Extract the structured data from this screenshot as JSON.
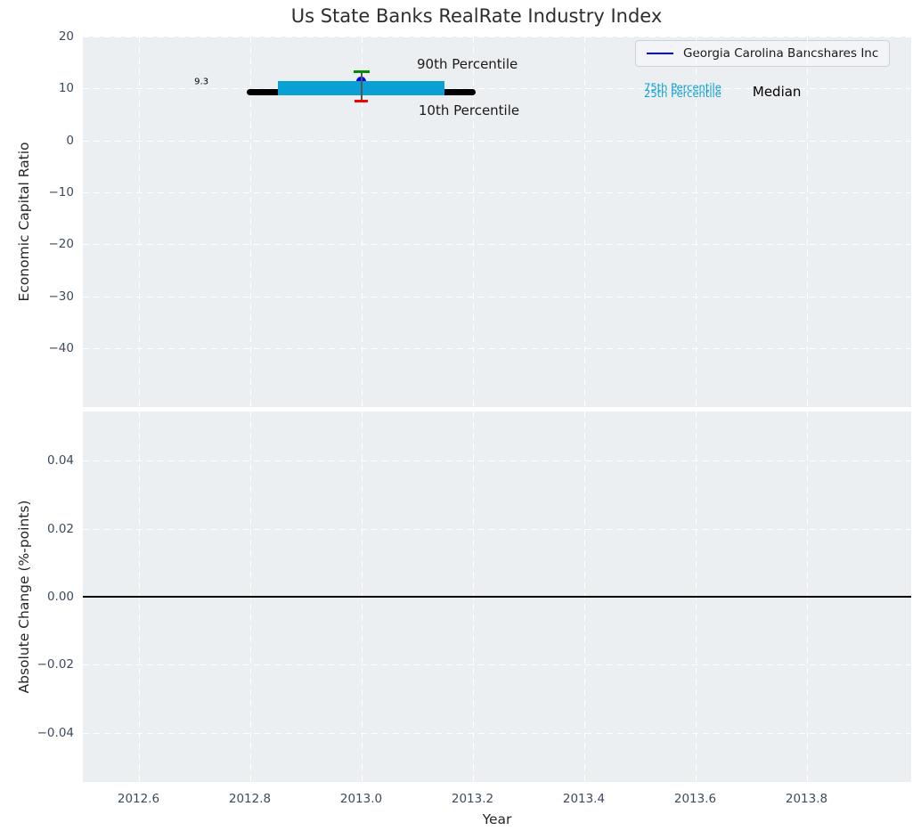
{
  "title": "Us State Banks RealRate Industry Index",
  "legend": {
    "label": "Georgia Carolina Bancshares Inc",
    "line_color": "#0000f0"
  },
  "colors": {
    "figure_background": "#ffffff",
    "plot_background": "#eceff1",
    "grid": "#ffffff",
    "tick_label": "#3d4b5d",
    "axis_label": "#262626",
    "title": "#2d2d2d",
    "company_blue": "#0000f0",
    "percentile_band_cyan": "#09a0d3",
    "p90_green": "#008d00",
    "p10_red": "#f80000",
    "median_black": "#000000",
    "errorbar_gray": "#555555",
    "zero_line_black": "#000000"
  },
  "chart_data": [
    {
      "type": "line",
      "title": "Us State Banks RealRate Industry Index",
      "ylabel": "Economic Capital Ratio",
      "xlabel": "",
      "xlim": [
        2012.5,
        2013.988
      ],
      "ylim": [
        -51.3,
        20
      ],
      "grid": "white dashed, on",
      "legend_position": "upper right",
      "yticks": [
        {
          "v": 20,
          "label": "20"
        },
        {
          "v": 10,
          "label": "10"
        },
        {
          "v": 0,
          "label": "0"
        },
        {
          "v": -10,
          "label": "−10"
        },
        {
          "v": -20,
          "label": "−20"
        },
        {
          "v": -30,
          "label": "−30"
        },
        {
          "v": -40,
          "label": "−40"
        }
      ],
      "xticks": [
        {
          "v": 2012.6,
          "label": ""
        },
        {
          "v": 2012.8,
          "label": ""
        },
        {
          "v": 2013.0,
          "label": ""
        },
        {
          "v": 2013.2,
          "label": ""
        },
        {
          "v": 2013.4,
          "label": ""
        },
        {
          "v": 2013.6,
          "label": ""
        },
        {
          "v": 2013.8,
          "label": ""
        }
      ],
      "series": [
        {
          "name": "Georgia Carolina Bancshares Inc",
          "kind": "scatter-point",
          "x": 2013.0,
          "y": 11.3,
          "color": "#0000f0",
          "marker": "circle",
          "size": 11
        },
        {
          "name": "Median",
          "kind": "thick-line",
          "x": [
            2012.8,
            2013.2
          ],
          "y": 9.3,
          "color": "#000000",
          "linewidth": 7
        },
        {
          "name": "25th-75th Percentile band",
          "kind": "band",
          "x": [
            2012.85,
            2013.15
          ],
          "y_low": 8.7,
          "y_high": 11.5,
          "color": "#09a0d3"
        },
        {
          "name": "90th-10th Percentile errorbar",
          "kind": "errorbar",
          "x": 2013.0,
          "y_low": 7.5,
          "y_high": 13.2,
          "line_color": "#555555",
          "cap_high_color": "#008d00",
          "cap_low_color": "#f80000",
          "cap_high_width": 18,
          "cap_low_width": 15
        }
      ],
      "annotations": [
        {
          "text": "9.3",
          "x": 2012.713,
          "y": 11.33,
          "color": "#000000",
          "size": 10,
          "anchor": "middle"
        },
        {
          "text": "90th Percentile",
          "x": 2013.1,
          "y": 14.7,
          "color": "#1a1a1a",
          "size": 15,
          "anchor": "left"
        },
        {
          "text": "10th Percentile",
          "x": 2013.103,
          "y": 5.8,
          "color": "#1a1a1a",
          "size": 15,
          "anchor": "left"
        },
        {
          "text": "75th Percentile",
          "x": 2013.508,
          "y": 10.15,
          "color": "#09a0d3",
          "size": 11.5,
          "anchor": "left"
        },
        {
          "text": "25th Percentile",
          "x": 2013.508,
          "y": 9.1,
          "color": "#09a0d3",
          "size": 11.5,
          "anchor": "left"
        },
        {
          "text": "Median",
          "x": 2013.703,
          "y": 9.4,
          "color": "#000000",
          "size": 15,
          "anchor": "left"
        }
      ]
    },
    {
      "type": "line",
      "title": "",
      "ylabel": "Absolute Change (%-points)",
      "xlabel": "Year",
      "xlim": [
        2012.5,
        2013.988
      ],
      "ylim": [
        -0.0545,
        0.0545
      ],
      "grid": "white dashed, on",
      "yticks": [
        {
          "v": 0.04,
          "label": "0.04"
        },
        {
          "v": 0.02,
          "label": "0.02"
        },
        {
          "v": 0.0,
          "label": "0.00"
        },
        {
          "v": -0.02,
          "label": "−0.02"
        },
        {
          "v": -0.04,
          "label": "−0.04"
        }
      ],
      "xticks": [
        {
          "v": 2012.6,
          "label": "2012.6"
        },
        {
          "v": 2012.8,
          "label": "2012.8"
        },
        {
          "v": 2013.0,
          "label": "2013.0"
        },
        {
          "v": 2013.2,
          "label": "2013.2"
        },
        {
          "v": 2013.4,
          "label": "2013.4"
        },
        {
          "v": 2013.6,
          "label": "2013.6"
        },
        {
          "v": 2013.8,
          "label": "2013.8"
        }
      ],
      "series": [],
      "zero_line": {
        "y": 0.0,
        "color": "#000000",
        "linewidth": 1.5
      }
    }
  ]
}
